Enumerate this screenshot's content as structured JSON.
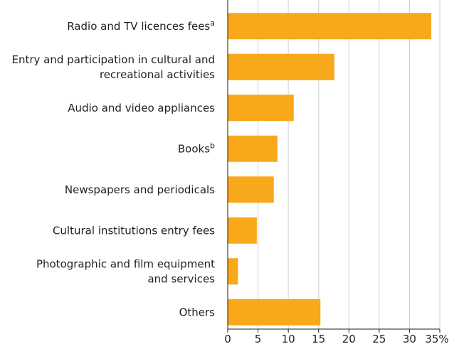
{
  "chart_data": {
    "type": "bar",
    "orientation": "horizontal",
    "categories": [
      {
        "lines": [
          "Radio and TV licences fees"
        ],
        "sup": "a"
      },
      {
        "lines": [
          "Entry and participation in cultural and",
          "recreational activities"
        ],
        "sup": ""
      },
      {
        "lines": [
          "Audio and video appliances"
        ],
        "sup": ""
      },
      {
        "lines": [
          "Books"
        ],
        "sup": "b"
      },
      {
        "lines": [
          "Newspapers and periodicals"
        ],
        "sup": ""
      },
      {
        "lines": [
          "Cultural institutions entry fees"
        ],
        "sup": ""
      },
      {
        "lines": [
          "Photographic and film equipment",
          "and services"
        ],
        "sup": ""
      },
      {
        "lines": [
          "Others"
        ],
        "sup": ""
      }
    ],
    "values": [
      33.6,
      17.6,
      10.9,
      8.2,
      7.6,
      4.8,
      1.7,
      15.3
    ],
    "xlim": [
      0,
      35
    ],
    "xticks": [
      "0",
      "5",
      "10",
      "15",
      "20",
      "25",
      "30",
      "35%"
    ],
    "xtick_values": [
      0,
      5,
      10,
      15,
      20,
      25,
      30,
      35
    ],
    "grid": true,
    "colors": {
      "bar": "#F7A81B",
      "grid": "#cfcfcf",
      "axis": "#1f1f1f"
    }
  }
}
